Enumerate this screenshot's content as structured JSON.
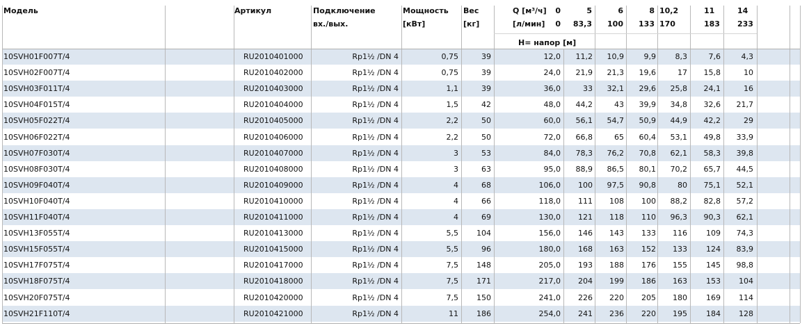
{
  "header": {
    "model": "Модель",
    "article": "Артикул",
    "connection": [
      "Подключение",
      "вх./вых."
    ],
    "power": [
      "Мощность",
      "[кВт]"
    ],
    "weight": [
      "Вес",
      "[кг]"
    ],
    "flow_m3h_label": "Q [м³/ч]",
    "flow_lmin_label": "[л/мин]",
    "flow_m3h": [
      "0",
      "5",
      "6",
      "8",
      "10,2",
      "11",
      "14"
    ],
    "flow_lmin": [
      "0",
      "83,3",
      "100",
      "133",
      "170",
      "183",
      "233"
    ],
    "head_label": "H= напор [м]"
  },
  "table": {
    "rows": [
      [
        "10SVH01F007T/4",
        "RU2010401000",
        "Rp1½ /DN 4",
        "0,75",
        "39",
        "12,0",
        "11,2",
        "10,9",
        "9,9",
        "8,3",
        "7,6",
        "4,3"
      ],
      [
        "10SVH02F007T/4",
        "RU2010402000",
        "Rp1½ /DN 4",
        "0,75",
        "39",
        "24,0",
        "21,9",
        "21,3",
        "19,6",
        "17",
        "15,8",
        "10"
      ],
      [
        "10SVH03F011T/4",
        "RU2010403000",
        "Rp1½ /DN 4",
        "1,1",
        "39",
        "36,0",
        "33",
        "32,1",
        "29,6",
        "25,8",
        "24,1",
        "16"
      ],
      [
        "10SVH04F015T/4",
        "RU2010404000",
        "Rp1½ /DN 4",
        "1,5",
        "42",
        "48,0",
        "44,2",
        "43",
        "39,9",
        "34,8",
        "32,6",
        "21,7"
      ],
      [
        "10SVH05F022T/4",
        "RU2010405000",
        "Rp1½ /DN 4",
        "2,2",
        "50",
        "60,0",
        "56,1",
        "54,7",
        "50,9",
        "44,9",
        "42,2",
        "29"
      ],
      [
        "10SVH06F022T/4",
        "RU2010406000",
        "Rp1½ /DN 4",
        "2,2",
        "50",
        "72,0",
        "66,8",
        "65",
        "60,4",
        "53,1",
        "49,8",
        "33,9"
      ],
      [
        "10SVH07F030T/4",
        "RU2010407000",
        "Rp1½ /DN 4",
        "3",
        "53",
        "84,0",
        "78,3",
        "76,2",
        "70,8",
        "62,1",
        "58,3",
        "39,8"
      ],
      [
        "10SVH08F030T/4",
        "RU2010408000",
        "Rp1½ /DN 4",
        "3",
        "63",
        "95,0",
        "88,9",
        "86,5",
        "80,1",
        "70,2",
        "65,7",
        "44,5"
      ],
      [
        "10SVH09F040T/4",
        "RU2010409000",
        "Rp1½ /DN 4",
        "4",
        "68",
        "106,0",
        "100",
        "97,5",
        "90,8",
        "80",
        "75,1",
        "52,1"
      ],
      [
        "10SVH10F040T/4",
        "RU2010410000",
        "Rp1½ /DN 4",
        "4",
        "66",
        "118,0",
        "111",
        "108",
        "100",
        "88,2",
        "82,8",
        "57,2"
      ],
      [
        "10SVH11F040T/4",
        "RU2010411000",
        "Rp1½ /DN 4",
        "4",
        "69",
        "130,0",
        "121",
        "118",
        "110",
        "96,3",
        "90,3",
        "62,1"
      ],
      [
        "10SVH13F055T/4",
        "RU2010413000",
        "Rp1½ /DN 4",
        "5,5",
        "104",
        "156,0",
        "146",
        "143",
        "133",
        "116",
        "109",
        "74,3"
      ],
      [
        "10SVH15F055T/4",
        "RU2010415000",
        "Rp1½ /DN 4",
        "5,5",
        "96",
        "180,0",
        "168",
        "163",
        "152",
        "133",
        "124",
        "83,9"
      ],
      [
        "10SVH17F075T/4",
        "RU2010417000",
        "Rp1½ /DN 4",
        "7,5",
        "148",
        "205,0",
        "193",
        "188",
        "176",
        "155",
        "145",
        "98,8"
      ],
      [
        "10SVH18F075T/4",
        "RU2010418000",
        "Rp1½ /DN 4",
        "7,5",
        "171",
        "217,0",
        "204",
        "199",
        "186",
        "163",
        "153",
        "104"
      ],
      [
        "10SVH20F075T/4",
        "RU2010420000",
        "Rp1½ /DN 4",
        "7,5",
        "150",
        "241,0",
        "226",
        "220",
        "205",
        "180",
        "169",
        "114"
      ],
      [
        "10SVH21F110T/4",
        "RU2010421000",
        "Rp1½ /DN 4",
        "11",
        "186",
        "254,0",
        "241",
        "236",
        "220",
        "195",
        "184",
        "128"
      ]
    ]
  }
}
